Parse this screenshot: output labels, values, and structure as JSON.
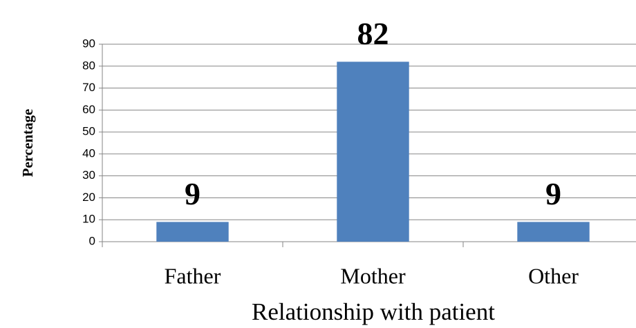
{
  "chart_data": {
    "type": "bar",
    "x_label": "Relationship with patient",
    "y_label": "Percentage",
    "categories": [
      "Father",
      "Mother",
      "Other"
    ],
    "values": [
      9,
      82,
      9
    ],
    "color": "#4f81bd",
    "ylim": [
      0,
      90
    ],
    "yticks": [
      0,
      10,
      20,
      30,
      40,
      50,
      60,
      70,
      80,
      90
    ],
    "grid": true
  }
}
